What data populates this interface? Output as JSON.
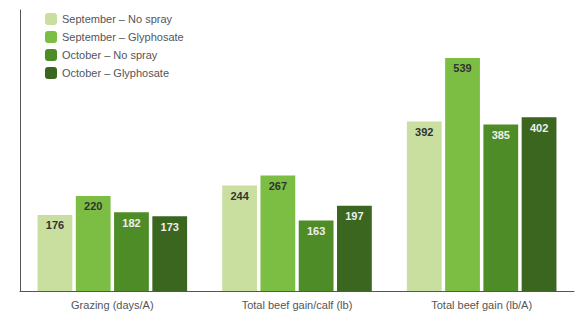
{
  "chart_data": {
    "type": "bar",
    "categories": [
      "Grazing (days/A)",
      "Total beef gain/calf (lb)",
      "Total beef gain (lb/A)"
    ],
    "series": [
      {
        "name": "September – No spray",
        "values": [
          176,
          244,
          392
        ],
        "color": "#c8dfa0"
      },
      {
        "name": "September – Glyphosate",
        "values": [
          220,
          267,
          539
        ],
        "color": "#7cbd44"
      },
      {
        "name": "October – No spray",
        "values": [
          182,
          163,
          385
        ],
        "color": "#4e8c28"
      },
      {
        "name": "October – Glyphosate",
        "values": [
          173,
          197,
          402
        ],
        "color": "#3a6620"
      }
    ],
    "ylim": [
      0,
      650
    ],
    "grid": false,
    "legend": "upper left",
    "data_labels": true,
    "tick_labels": "x"
  }
}
